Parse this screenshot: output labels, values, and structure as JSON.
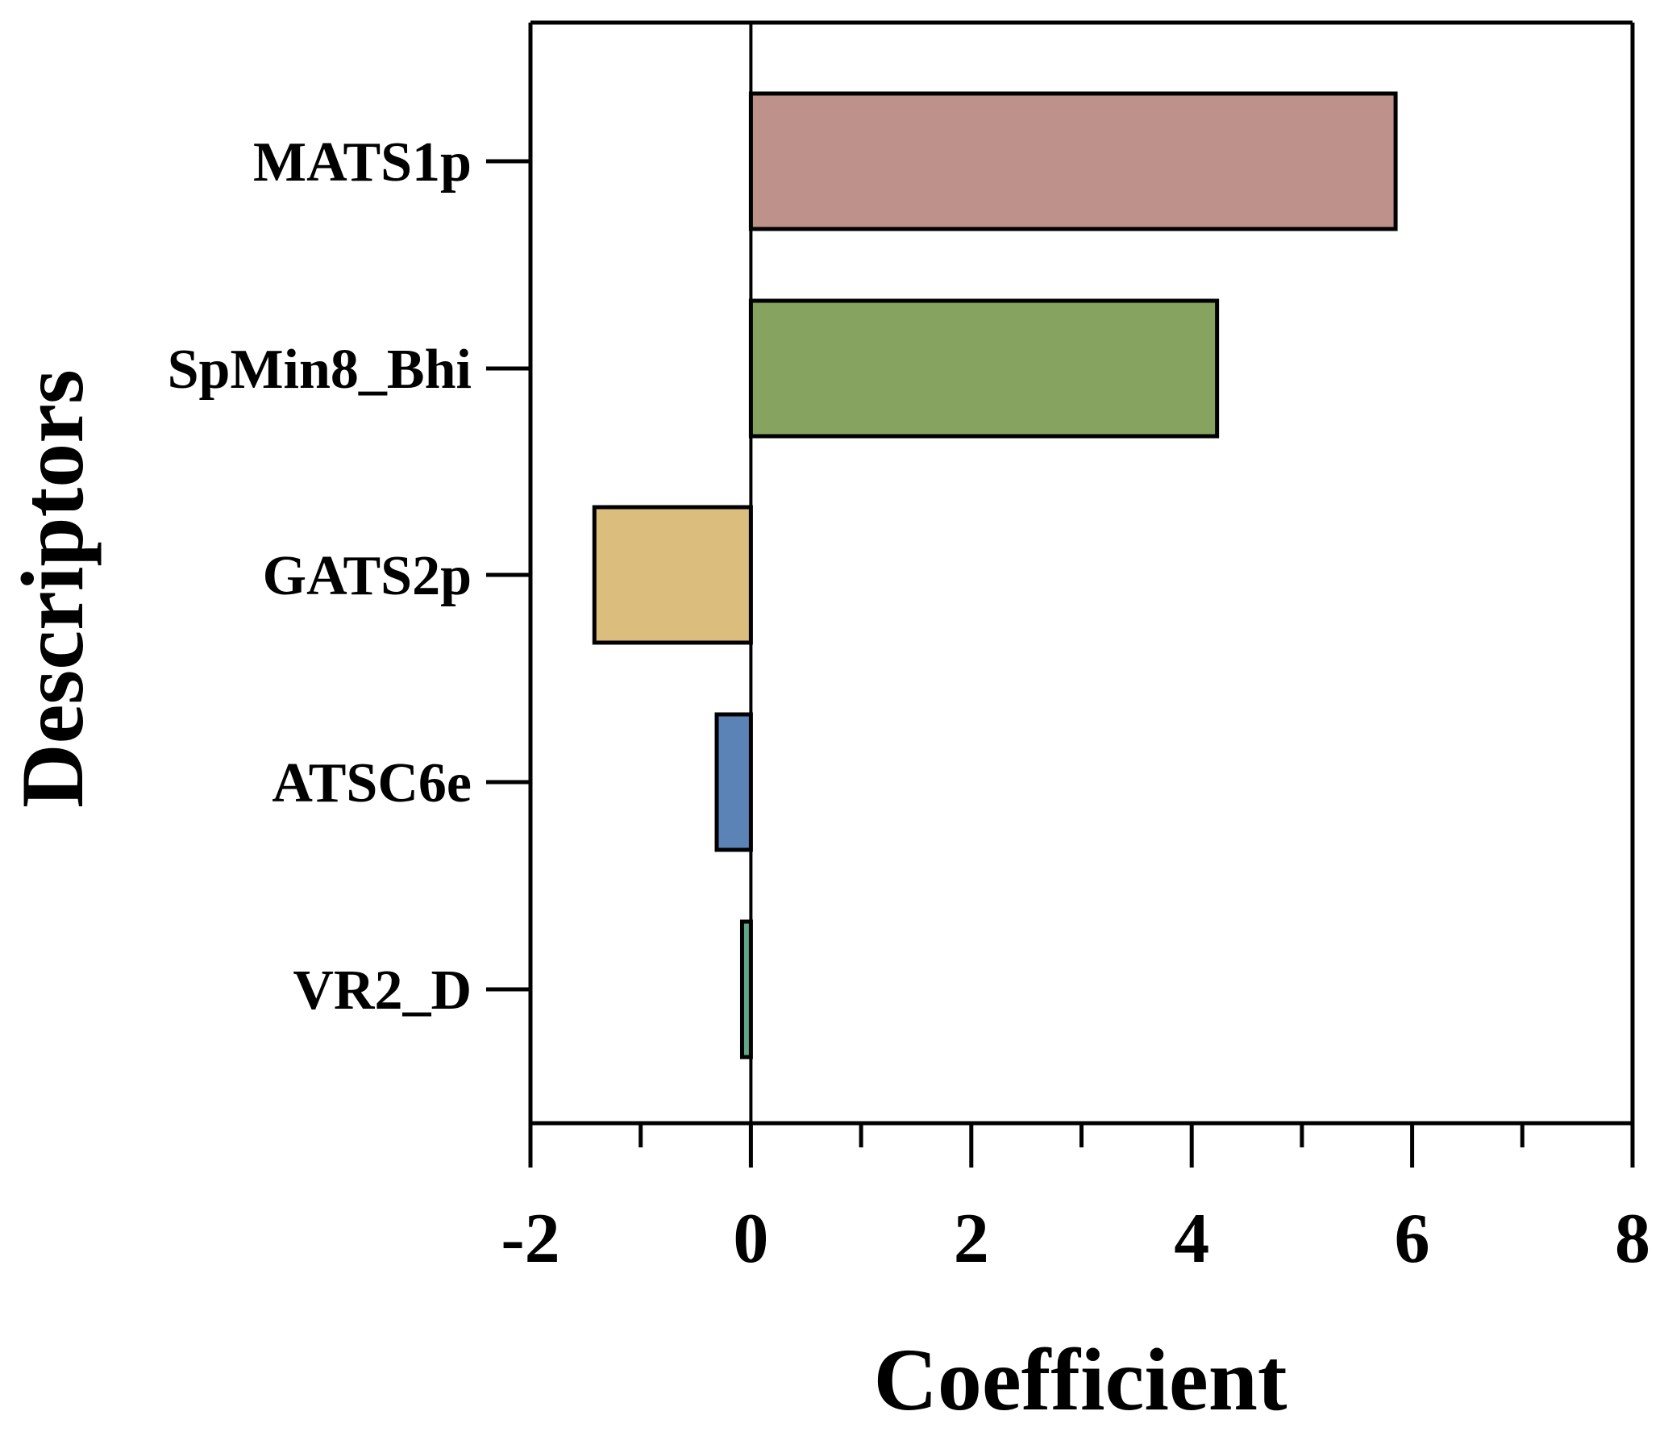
{
  "chart_data": {
    "type": "bar",
    "orientation": "horizontal",
    "categories": [
      "MATS1p",
      "SpMin8_Bhi",
      "GATS2p",
      "ATSC6e",
      "VR2_D"
    ],
    "values": [
      5.85,
      4.23,
      -1.42,
      -0.31,
      -0.08
    ],
    "colors": [
      "#bf918b",
      "#86a35f",
      "#dbbd7d",
      "#5b83b6",
      "#5fa88a"
    ],
    "xlabel": "Coefficient",
    "ylabel": "Descriptors",
    "xlim": [
      -2,
      8
    ],
    "x_ticks": [
      "-2",
      "0",
      "2",
      "4",
      "6",
      "8"
    ],
    "x_tick_values": [
      -2,
      0,
      2,
      4,
      6,
      8
    ],
    "minor_tick_step": 1,
    "grid": false,
    "legend": "none"
  }
}
